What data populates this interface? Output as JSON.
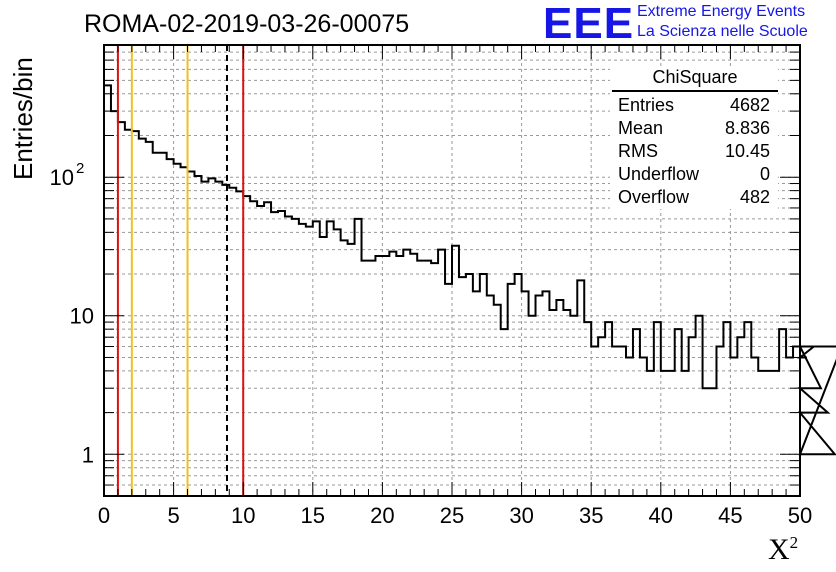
{
  "header": {
    "run_title": "ROMA-02-2019-03-26-00075",
    "logo_text": "EEE",
    "logo_line1": "Extreme Energy Events",
    "logo_line2": "La Scienza nelle Scuole"
  },
  "axes": {
    "ylabel": "Entries/bin",
    "xlabel_base": "X",
    "xlabel_sup": "2"
  },
  "stats_box": {
    "title": "ChiSquare",
    "rows": [
      {
        "label": "Entries",
        "value": "4682"
      },
      {
        "label": "Mean",
        "value": "8.836"
      },
      {
        "label": "RMS",
        "value": "10.45"
      },
      {
        "label": "Underflow",
        "value": "0"
      },
      {
        "label": "Overflow",
        "value": "482"
      }
    ]
  },
  "chart_data": {
    "type": "histogram",
    "title": "ROMA-02-2019-03-26-00075",
    "xlabel": "X²",
    "ylabel": "Entries/bin",
    "xlim": [
      0,
      50
    ],
    "ylim": [
      0.5,
      900
    ],
    "yscale": "log",
    "grid": true,
    "bin_width": 0.5,
    "x_ticks": [
      "0",
      "5",
      "10",
      "15",
      "20",
      "25",
      "30",
      "35",
      "40",
      "45",
      "50"
    ],
    "y_ticks": [
      "1",
      "10",
      "10^2"
    ],
    "values": [
      460,
      300,
      250,
      220,
      215,
      190,
      180,
      150,
      150,
      135,
      125,
      118,
      110,
      102,
      93,
      98,
      93,
      88,
      84,
      79,
      73,
      67,
      62,
      66,
      56,
      57,
      52,
      50,
      46,
      44,
      48,
      37,
      48,
      42,
      35,
      33,
      50,
      25,
      25,
      27,
      27,
      29,
      27,
      30,
      28,
      25,
      25,
      24,
      30,
      17,
      32,
      19,
      20,
      15,
      20,
      14,
      12,
      8,
      17,
      20,
      15,
      10,
      14,
      15,
      11,
      13,
      11,
      10,
      18,
      9,
      6,
      7,
      9,
      6,
      6,
      5,
      8,
      5,
      4,
      9,
      4,
      4,
      8,
      4,
      7,
      10,
      3,
      3,
      6,
      9,
      5,
      7,
      9,
      5,
      4,
      4,
      4,
      8,
      5,
      6,
      5,
      5,
      6,
      3,
      2,
      1,
      6
    ],
    "vertical_lines": [
      {
        "x": 1,
        "color": "#e01010",
        "style": "solid"
      },
      {
        "x": 2,
        "color": "#f0c020",
        "style": "solid"
      },
      {
        "x": 6,
        "color": "#f0c020",
        "style": "solid"
      },
      {
        "x": 8.836,
        "color": "#000000",
        "style": "dashed"
      },
      {
        "x": 10,
        "color": "#e01010",
        "style": "solid"
      }
    ]
  }
}
